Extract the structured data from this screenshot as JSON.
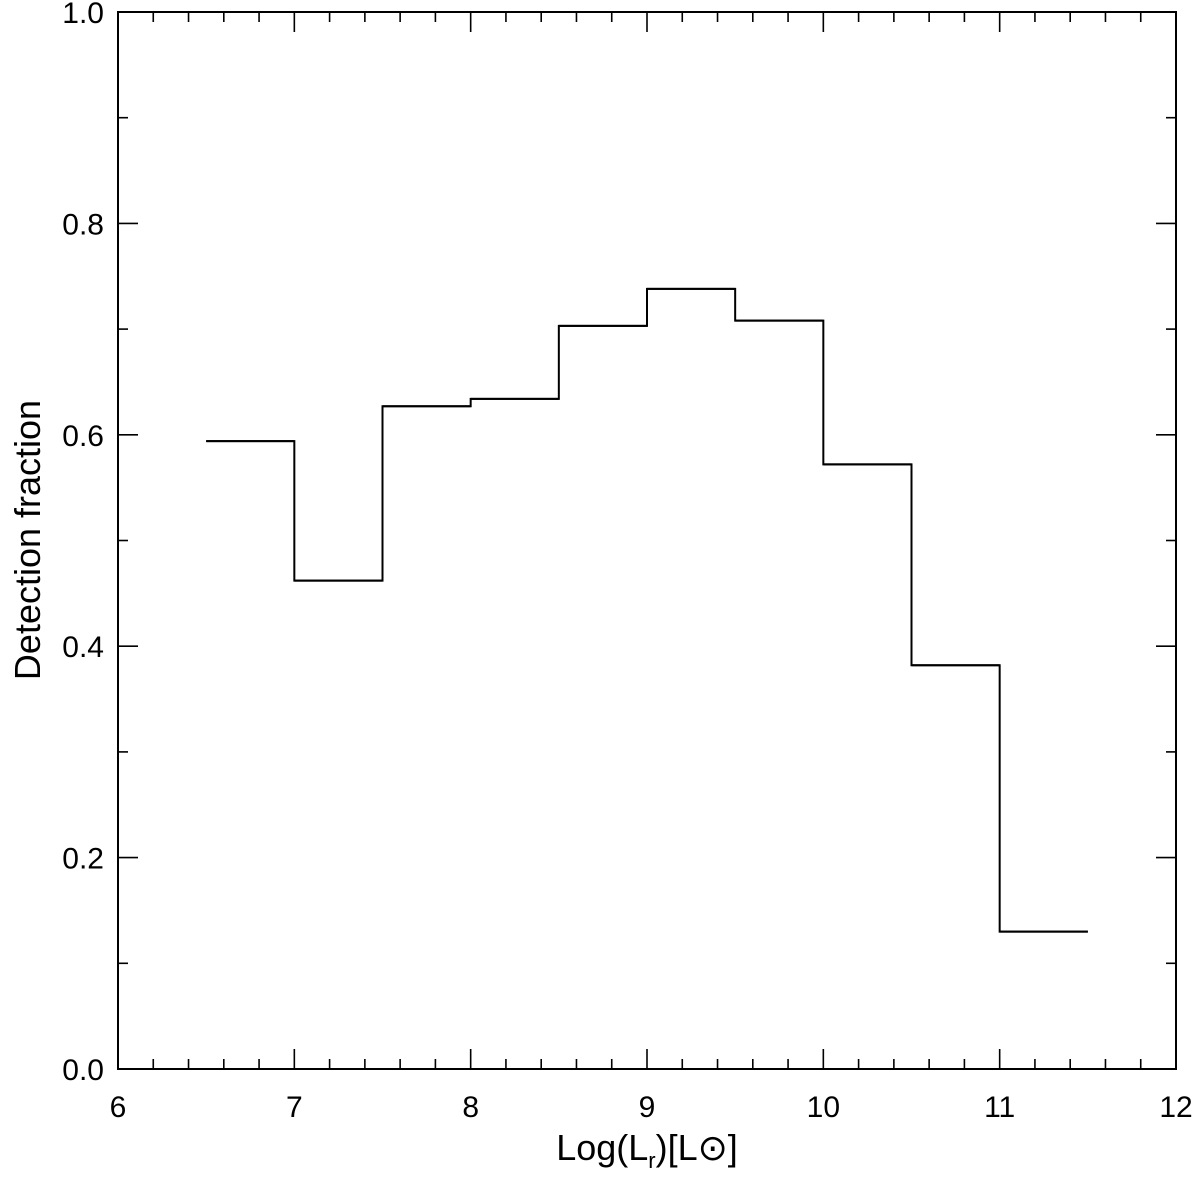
{
  "chart_data": {
    "type": "line",
    "step": "post",
    "title": "",
    "xlabel": {
      "main": "Log(L",
      "sub": "r",
      "tail": ")[L",
      "symbol": "⊙",
      "end": "]"
    },
    "ylabel": "Detection fraction",
    "xlim": [
      6,
      12
    ],
    "ylim": [
      0.0,
      1.0
    ],
    "x_ticks": [
      6,
      7,
      8,
      9,
      10,
      11,
      12
    ],
    "x_tick_labels": [
      "6",
      "7",
      "8",
      "9",
      "10",
      "11",
      "12"
    ],
    "x_minor_step": 0.2,
    "y_ticks": [
      0.0,
      0.2,
      0.4,
      0.6,
      0.8,
      1.0
    ],
    "y_tick_labels": [
      "0.0",
      "0.2",
      "0.4",
      "0.6",
      "0.8",
      "1.0"
    ],
    "y_minor_step": 0.1,
    "grid": false,
    "series": [
      {
        "bins": [
          {
            "x0": 6.5,
            "x1": 7.0,
            "y": 0.594
          },
          {
            "x0": 7.0,
            "x1": 7.5,
            "y": 0.462
          },
          {
            "x0": 7.5,
            "x1": 8.0,
            "y": 0.627
          },
          {
            "x0": 8.0,
            "x1": 8.5,
            "y": 0.634
          },
          {
            "x0": 8.5,
            "x1": 9.0,
            "y": 0.703
          },
          {
            "x0": 9.0,
            "x1": 9.5,
            "y": 0.738
          },
          {
            "x0": 9.5,
            "x1": 10.0,
            "y": 0.708
          },
          {
            "x0": 10.0,
            "x1": 10.5,
            "y": 0.572
          },
          {
            "x0": 10.5,
            "x1": 11.0,
            "y": 0.382
          },
          {
            "x0": 11.0,
            "x1": 11.5,
            "y": 0.13
          }
        ]
      }
    ]
  }
}
